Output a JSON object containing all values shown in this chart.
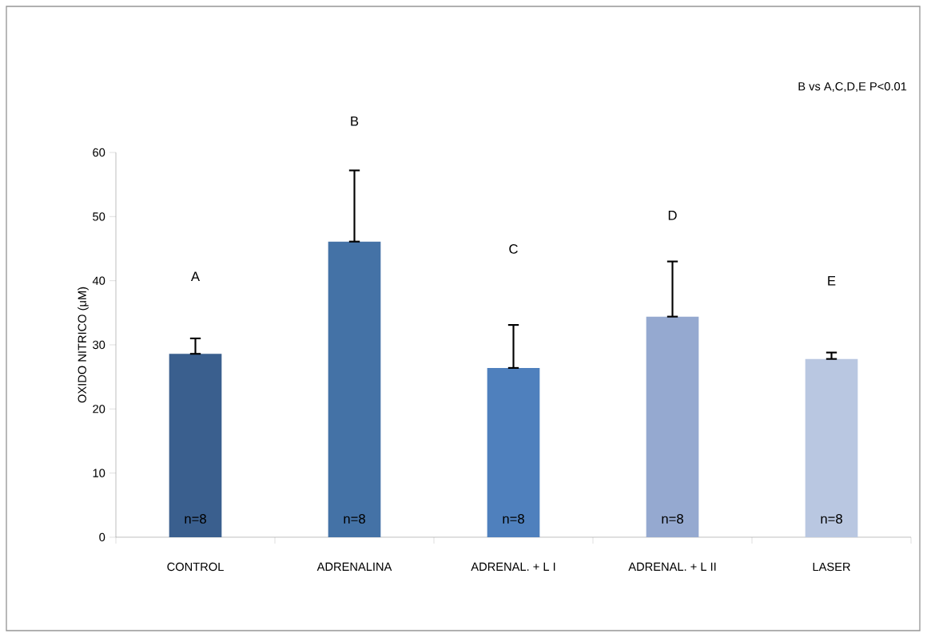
{
  "chart_data": {
    "type": "bar",
    "ylabel": "OXIDO NITRICO (μM)",
    "categories": [
      "CONTROL",
      "ADRENALINA",
      "ADRENAL. + L I",
      "ADRENAL. + L II",
      "LASER"
    ],
    "values": [
      28.6,
      46.1,
      26.4,
      34.4,
      27.8
    ],
    "colors": [
      "#3a5f8e",
      "#4472a6",
      "#4f80bd",
      "#95a9d0",
      "#b9c7e1"
    ],
    "errors": [
      [
        28.6,
        31.0
      ],
      [
        46.1,
        57.2
      ],
      [
        26.4,
        33.1
      ],
      [
        34.4,
        43.0
      ],
      [
        27.8,
        28.8
      ]
    ],
    "ylim": [
      0,
      60
    ],
    "yticks": [
      0,
      10,
      20,
      30,
      40,
      50,
      60
    ],
    "grid": false,
    "annotations": [
      "B vs A,C,D,E P<0.01",
      "A",
      "B",
      "C",
      "D",
      "E",
      "n=8",
      "n=8",
      "n=8",
      "n=8",
      "n=8"
    ]
  }
}
